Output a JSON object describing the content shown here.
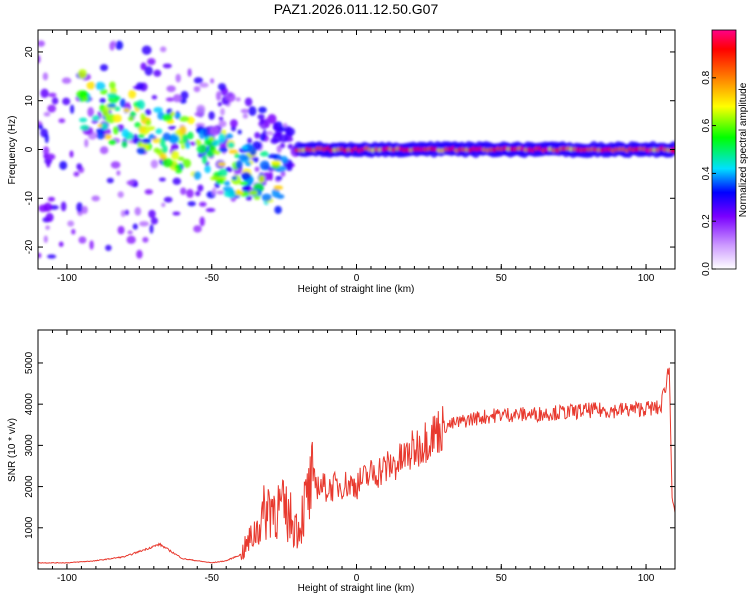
{
  "title": "PAZ1.2026.011.12.50.G07",
  "chart_data": [
    {
      "type": "heatmap",
      "title": "PAZ1.2026.011.12.50.G07",
      "xlabel": "Height of straight line (km)",
      "ylabel": "Frequency (Hz)",
      "xlim": [
        -110,
        110
      ],
      "ylim": [
        -24.5,
        24.5
      ],
      "xticks": [
        -100,
        -50,
        0,
        50,
        100
      ],
      "yticks": [
        20,
        10,
        0,
        -10,
        -20
      ],
      "xtick_labels": [
        "-100",
        "-50",
        "0",
        "50",
        "100"
      ],
      "ytick_labels": [
        "20",
        "10",
        "0",
        "-10",
        "-20"
      ],
      "colorbar": {
        "label": "Normalized spectral amplitude",
        "range": [
          0,
          1
        ],
        "ticks": [
          0.0,
          0.2,
          0.4,
          0.6,
          0.8
        ],
        "tick_labels": [
          "0.0",
          "0.2",
          "0.4",
          "0.6",
          "0.8"
        ],
        "stops": [
          "#ffffff",
          "#cc99ff",
          "#7a00ff",
          "#0000ff",
          "#00e0ff",
          "#00ff00",
          "#ffff00",
          "#ff7f00",
          "#ff0000",
          "#ff0088"
        ]
      },
      "features": [
        {
          "x_range": [
            -110,
            -20
          ],
          "freq_spread": 22,
          "amplitude": 0.25,
          "description": "scattered weak signal"
        },
        {
          "x_range": [
            -95,
            -25
          ],
          "freq_trend": [
            10,
            -8
          ],
          "amplitude": 0.55,
          "description": "descending strong trace"
        },
        {
          "x_range": [
            -20,
            110
          ],
          "freq": 0,
          "amplitude": 0.95,
          "description": "stable carrier line"
        }
      ]
    },
    {
      "type": "line",
      "xlabel": "Height of straight line (km)",
      "ylabel": "SNR (10 * v/v)",
      "xlim": [
        -110,
        110
      ],
      "ylim": [
        0,
        5800
      ],
      "xticks": [
        -100,
        -50,
        0,
        50,
        100
      ],
      "yticks": [
        1000,
        2000,
        3000,
        4000,
        5000
      ],
      "xtick_labels": [
        "-100",
        "-50",
        "0",
        "50",
        "100"
      ],
      "ytick_labels": [
        "1000",
        "2000",
        "3000",
        "4000",
        "5000"
      ],
      "color": "#e8392e",
      "series": [
        {
          "name": "SNR",
          "x": [
            -110,
            -100,
            -90,
            -80,
            -72,
            -68,
            -60,
            -50,
            -45,
            -40,
            -35,
            -30,
            -25,
            -20,
            -18,
            -15,
            -10,
            -5,
            0,
            5,
            10,
            15,
            20,
            25,
            30,
            40,
            50,
            60,
            70,
            72,
            80,
            90,
            100,
            105,
            108,
            109,
            110
          ],
          "values": [
            150,
            150,
            200,
            300,
            500,
            600,
            250,
            150,
            200,
            350,
            900,
            1600,
            1400,
            1000,
            1500,
            2100,
            1950,
            2050,
            2050,
            2300,
            2450,
            2600,
            2900,
            3200,
            3450,
            3650,
            3750,
            3750,
            3800,
            3800,
            3850,
            3850,
            3900,
            3900,
            4900,
            1800,
            1400
          ]
        }
      ]
    }
  ]
}
